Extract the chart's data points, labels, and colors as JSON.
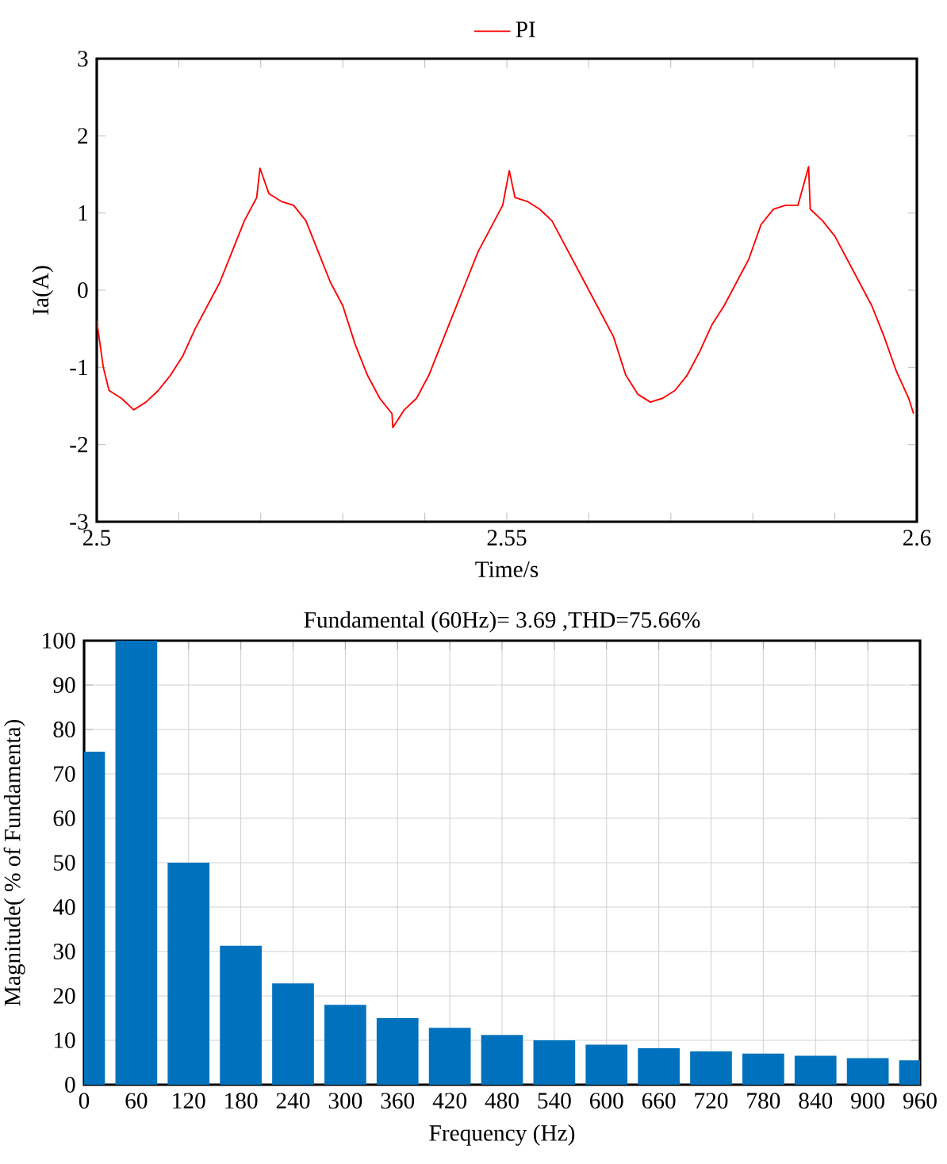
{
  "chart_data": [
    {
      "type": "line",
      "legend": "top",
      "xlabel": "Time/s",
      "ylabel": "Ia(A)",
      "x": [
        2.5,
        2.5008,
        2.5015,
        2.503,
        2.5045,
        2.506,
        2.5075,
        2.509,
        2.5105,
        2.512,
        2.5135,
        2.515,
        2.5165,
        2.518,
        2.5195,
        2.5199,
        2.521,
        2.5225,
        2.524,
        2.5255,
        2.527,
        2.5285,
        2.53,
        2.5315,
        2.533,
        2.5345,
        2.536,
        2.5361,
        2.5375,
        2.539,
        2.5405,
        2.542,
        2.5435,
        2.545,
        2.5465,
        2.548,
        2.5495,
        2.5503,
        2.551,
        2.5525,
        2.554,
        2.5555,
        2.557,
        2.5585,
        2.56,
        2.5615,
        2.563,
        2.5645,
        2.566,
        2.5675,
        2.569,
        2.5705,
        2.572,
        2.5735,
        2.575,
        2.5765,
        2.578,
        2.5795,
        2.581,
        2.5825,
        2.584,
        2.5855,
        2.5868,
        2.587,
        2.5885,
        2.59,
        2.5915,
        2.593,
        2.5945,
        2.596,
        2.5975,
        2.599,
        2.5996
      ],
      "series": [
        {
          "name": "PI",
          "color": "#ff0000",
          "values": [
            -0.4,
            -1.0,
            -1.3,
            -1.4,
            -1.55,
            -1.45,
            -1.3,
            -1.1,
            -0.85,
            -0.5,
            -0.2,
            0.1,
            0.5,
            0.9,
            1.2,
            1.58,
            1.25,
            1.15,
            1.1,
            0.9,
            0.5,
            0.1,
            -0.2,
            -0.7,
            -1.1,
            -1.4,
            -1.6,
            -1.78,
            -1.55,
            -1.4,
            -1.1,
            -0.7,
            -0.3,
            0.1,
            0.5,
            0.8,
            1.1,
            1.55,
            1.2,
            1.15,
            1.05,
            0.9,
            0.6,
            0.3,
            0.0,
            -0.3,
            -0.6,
            -1.1,
            -1.35,
            -1.45,
            -1.4,
            -1.3,
            -1.1,
            -0.8,
            -0.45,
            -0.2,
            0.1,
            0.4,
            0.85,
            1.05,
            1.1,
            1.1,
            1.6,
            1.05,
            0.9,
            0.7,
            0.4,
            0.1,
            -0.2,
            -0.6,
            -1.05,
            -1.4,
            -1.6
          ]
        }
      ],
      "xlim": [
        2.5,
        2.6
      ],
      "ylim": [
        -3,
        3
      ],
      "xticks": [
        2.5,
        {
          "value": 2.51,
          "label": null
        },
        {
          "value": 2.52,
          "label": null
        },
        {
          "value": 2.53,
          "label": null
        },
        {
          "value": 2.54,
          "label": null
        },
        2.55,
        {
          "value": 2.56,
          "label": null
        },
        {
          "value": 2.57,
          "label": null
        },
        {
          "value": 2.58,
          "label": null
        },
        {
          "value": 2.59,
          "label": null
        },
        2.6
      ],
      "yticks": [
        -3,
        -2,
        -1,
        0,
        1,
        2,
        3
      ]
    },
    {
      "type": "bar",
      "title": "Fundamental (60Hz)= 3.69 ,THD=75.66%",
      "xlabel": "Frequency (Hz)",
      "ylabel": "Magnitude( % of Fundamenta)",
      "x": [
        0,
        60,
        120,
        180,
        240,
        300,
        360,
        420,
        480,
        540,
        600,
        660,
        720,
        780,
        840,
        900,
        960
      ],
      "values": [
        75,
        100,
        50,
        31.3,
        22.8,
        18,
        15,
        12.8,
        11.2,
        10,
        9,
        8.2,
        7.5,
        7,
        6.5,
        6,
        5.5
      ],
      "color": "#0072bd",
      "grid": true,
      "xlim": [
        0,
        960
      ],
      "ylim": [
        0,
        100
      ],
      "xticks": [
        0,
        60,
        120,
        180,
        240,
        300,
        360,
        420,
        480,
        540,
        600,
        660,
        720,
        780,
        840,
        900,
        960
      ],
      "yticks": [
        0,
        10,
        20,
        30,
        40,
        50,
        60,
        70,
        80,
        90,
        100
      ]
    }
  ]
}
